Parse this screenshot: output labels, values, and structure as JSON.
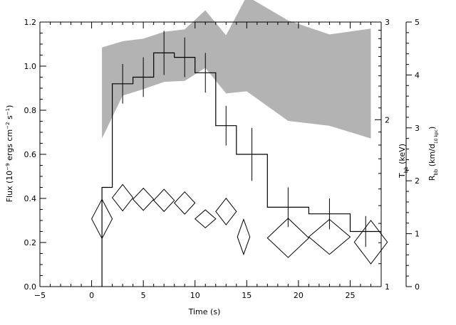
{
  "chart_data": {
    "type": "line",
    "xlabel": "Time (s)",
    "xlim": [
      -5,
      28
    ],
    "x_ticks": [
      -5,
      0,
      5,
      10,
      15,
      20,
      25
    ],
    "y_left": {
      "label_parts": [
        "Flux (10",
        "−9",
        " ergs cm",
        "−2",
        " s",
        "−1",
        ")"
      ],
      "lim": [
        0,
        1.2
      ],
      "ticks": [
        "0.0",
        "0.2",
        "0.4",
        "0.6",
        "0.8",
        "1.0",
        "1.2"
      ]
    },
    "y_right_temperature": {
      "label_parts": [
        "T",
        "bb",
        " (keV)"
      ],
      "scale": "log",
      "lim": [
        1,
        3
      ],
      "ticks": [
        "1",
        "2",
        "3"
      ]
    },
    "y_right_radius": {
      "label_parts": [
        "R",
        "bb",
        " (km/d",
        "10 kpc",
        ")"
      ],
      "lim": [
        0,
        5
      ],
      "ticks": [
        "0",
        "1",
        "2",
        "3",
        "4",
        "5"
      ]
    },
    "flux": {
      "bins": [
        {
          "t0": 1,
          "t1": 2,
          "y": 0.45,
          "err": 0.0
        },
        {
          "t0": 2,
          "t1": 4,
          "y": 0.92,
          "err": 0.09
        },
        {
          "t0": 4,
          "t1": 6,
          "y": 0.95,
          "err": 0.09
        },
        {
          "t0": 6,
          "t1": 8,
          "y": 1.06,
          "err": 0.1
        },
        {
          "t0": 8,
          "t1": 10,
          "y": 1.04,
          "err": 0.09
        },
        {
          "t0": 10,
          "t1": 12,
          "y": 0.97,
          "err": 0.09
        },
        {
          "t0": 12,
          "t1": 14,
          "y": 0.73,
          "err": 0.09
        },
        {
          "t0": 14,
          "t1": 17,
          "y": 0.6,
          "err": 0.12
        },
        {
          "t0": 17,
          "t1": 21,
          "y": 0.36,
          "err": 0.09
        },
        {
          "t0": 21,
          "t1": 25,
          "y": 0.33,
          "err": 0.07
        },
        {
          "t0": 25,
          "t1": 28,
          "y": 0.25,
          "err": 0.07
        }
      ]
    },
    "temperature_band_keV": {
      "x": [
        1,
        3,
        5,
        7,
        9,
        11,
        13,
        15,
        19,
        23,
        27
      ],
      "upper": [
        2.7,
        2.77,
        2.8,
        2.88,
        2.91,
        3.15,
        2.84,
        3.34,
        3.02,
        2.85,
        2.92
      ],
      "lower": [
        1.85,
        2.21,
        2.27,
        2.34,
        2.35,
        2.48,
        2.23,
        2.25,
        1.99,
        1.95,
        1.85
      ]
    },
    "radius_km": {
      "points": [
        {
          "t": 1,
          "r": 1.28,
          "dt": 1.0,
          "dr": 0.37
        },
        {
          "t": 3,
          "r": 1.68,
          "dt": 1.0,
          "dr": 0.25
        },
        {
          "t": 5,
          "r": 1.65,
          "dt": 1.0,
          "dr": 0.21
        },
        {
          "t": 7,
          "r": 1.63,
          "dt": 1.0,
          "dr": 0.21
        },
        {
          "t": 9,
          "r": 1.58,
          "dt": 1.0,
          "dr": 0.21
        },
        {
          "t": 11,
          "r": 1.28,
          "dt": 1.0,
          "dr": 0.17
        },
        {
          "t": 13,
          "r": 1.42,
          "dt": 1.0,
          "dr": 0.25
        },
        {
          "t": 14.7,
          "r": 0.94,
          "dt": 0.6,
          "dr": 0.33
        },
        {
          "t": 19,
          "r": 0.92,
          "dt": 2.0,
          "dr": 0.37
        },
        {
          "t": 23,
          "r": 0.94,
          "dt": 2.0,
          "dr": 0.33
        },
        {
          "t": 27,
          "r": 0.84,
          "dt": 1.6,
          "dr": 0.41
        }
      ]
    },
    "colors": {
      "band": "#b3b3b3",
      "lines": "#000000"
    }
  }
}
